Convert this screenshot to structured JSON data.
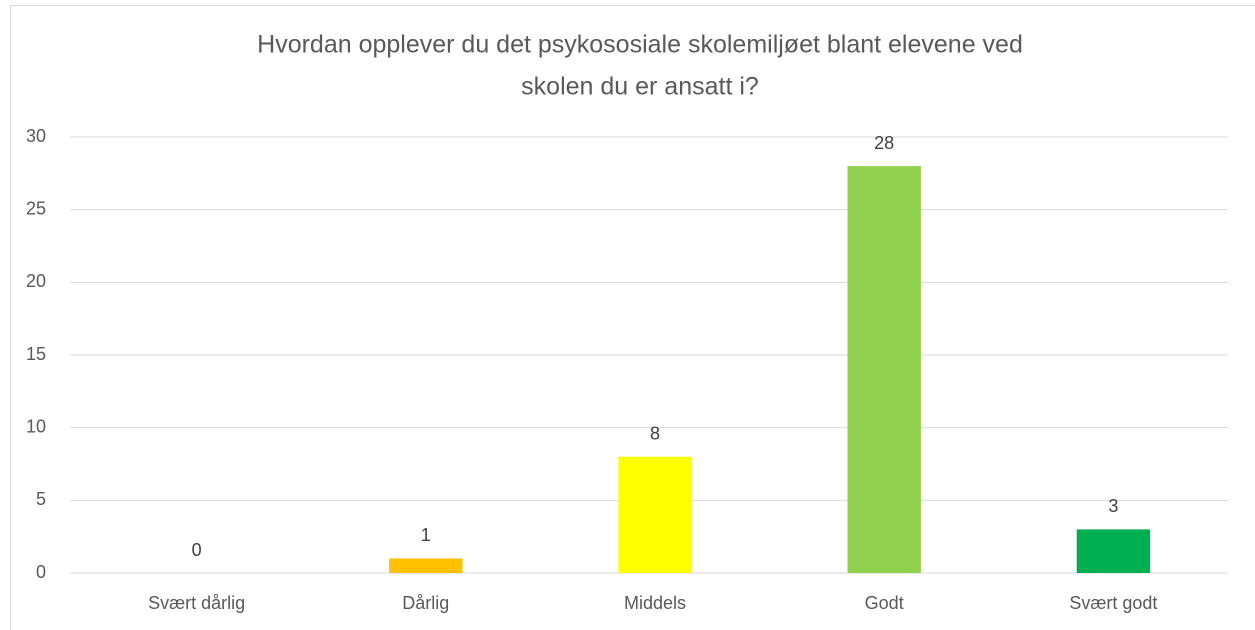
{
  "chart_data": {
    "type": "bar",
    "title": [
      "Hvordan opplever du det psykososiale skolemiljøet blant elevene ved",
      "skolen du er ansatt i?"
    ],
    "categories": [
      "Svært dårlig",
      "Dårlig",
      "Middels",
      "Godt",
      "Svært godt"
    ],
    "values": [
      0,
      1,
      8,
      28,
      3
    ],
    "colors": [
      "#ff0000",
      "#ffc000",
      "#ffff00",
      "#92d050",
      "#00b050"
    ],
    "ylim": [
      0,
      30
    ],
    "yticks": [
      0,
      5,
      10,
      15,
      20,
      25,
      30
    ],
    "grid": true
  }
}
